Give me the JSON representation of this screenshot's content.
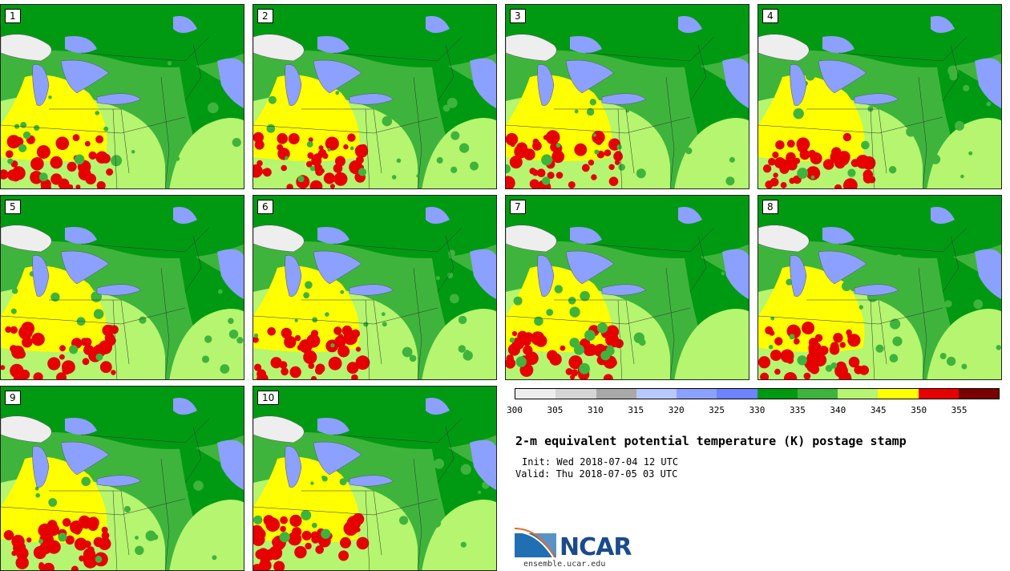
{
  "title": "2-m equivalent potential temperature (K) postage stamp",
  "init_text": "Init: Wed 2018-07-04 12 UTC",
  "valid_text": "Valid: Thu 2018-07-05 03 UTC",
  "logo_text": "NCAR",
  "site": "ensemble.ucar.edu",
  "members": [
    "1",
    "2",
    "3",
    "4",
    "5",
    "6",
    "7",
    "8",
    "9",
    "10"
  ],
  "colorbar": {
    "colors": [
      "#eeeeee",
      "#d6d6d6",
      "#a9a9a9",
      "#b7c8ff",
      "#8ca0ff",
      "#6f82ff",
      "#009a12",
      "#3fb43c",
      "#b5f56f",
      "#ffff00",
      "#e60000",
      "#7a0000"
    ],
    "ticks": [
      "300",
      "305",
      "310",
      "315",
      "320",
      "325",
      "330",
      "335",
      "340",
      "345",
      "350",
      "355"
    ]
  },
  "map_colors": {
    "high_green": "#009a12",
    "mid_green": "#3fb43c",
    "light_green": "#b5f56f",
    "yellow": "#ffff00",
    "red": "#e60000",
    "blue": "#8ca0ff",
    "grey": "#eeeeee"
  }
}
